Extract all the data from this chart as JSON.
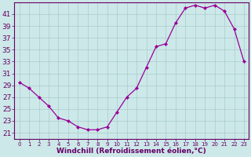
{
  "x": [
    0,
    1,
    2,
    3,
    4,
    5,
    6,
    7,
    8,
    9,
    10,
    11,
    12,
    13,
    14,
    15,
    16,
    17,
    18,
    19,
    20,
    21,
    22,
    23
  ],
  "y": [
    29.5,
    28.5,
    27,
    25.5,
    23.5,
    23,
    22,
    21.5,
    21.5,
    22,
    24.5,
    27,
    28.5,
    32,
    35.5,
    36,
    39.5,
    42,
    42.5,
    42,
    42.5,
    41.5,
    38.5,
    33
  ],
  "line_color": "#990099",
  "marker": "D",
  "marker_size": 2.0,
  "bg_color": "#cce8e8",
  "grid_color": "#aacccc",
  "xlabel": "Windchill (Refroidissement éolien,°C)",
  "xlim": [
    -0.5,
    23.5
  ],
  "ylim": [
    20.0,
    43.0
  ],
  "yticks": [
    21,
    23,
    25,
    27,
    29,
    31,
    33,
    35,
    37,
    39,
    41
  ],
  "xticks": [
    0,
    1,
    2,
    3,
    4,
    5,
    6,
    7,
    8,
    9,
    10,
    11,
    12,
    13,
    14,
    15,
    16,
    17,
    18,
    19,
    20,
    21,
    22,
    23
  ],
  "tick_color": "#660066",
  "label_color": "#660066",
  "spine_color": "#660066",
  "font_size_y": 6.5,
  "font_size_x": 5.0,
  "xlabel_font_size": 6.5,
  "line_width": 0.9
}
